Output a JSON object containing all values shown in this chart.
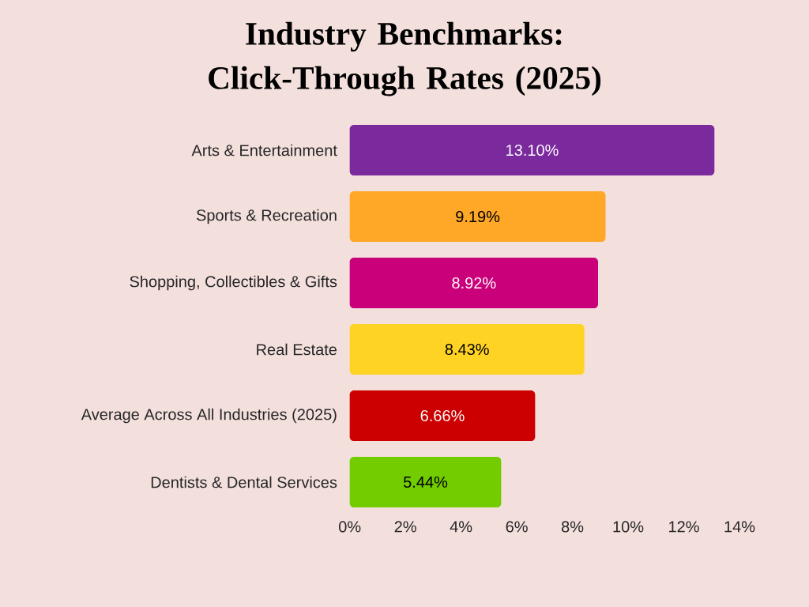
{
  "chart_data": {
    "type": "bar",
    "orientation": "horizontal",
    "title": "Industry Benchmarks: Click-Through Rates (2025)",
    "categories": [
      "Arts & Entertainment",
      "Sports & Recreation",
      "Shopping, Collectibles & Gifts",
      "Real Estate",
      "Average Across All Industries (2025)",
      "Dentists & Dental Services"
    ],
    "values": [
      13.1,
      9.19,
      8.92,
      8.43,
      6.66,
      5.44
    ],
    "colors": [
      "#7b2a9e",
      "#ffa726",
      "#c9007a",
      "#ffd323",
      "#cc0000",
      "#72cc00"
    ],
    "value_labels": [
      "13.10%",
      "9.19%",
      "8.92%",
      "8.43%",
      "6.66%",
      "5.44%"
    ],
    "xlim": [
      0,
      14
    ],
    "xticks": [
      {
        "value": 0,
        "label": "0%"
      },
      {
        "value": 2,
        "label": "2%"
      },
      {
        "value": 4,
        "label": "4%"
      },
      {
        "value": 6,
        "label": "6%"
      },
      {
        "value": 8,
        "label": "8%"
      },
      {
        "value": 10,
        "label": "10%"
      },
      {
        "value": 12,
        "label": "12%"
      },
      {
        "value": 14,
        "label": "14%"
      }
    ]
  }
}
